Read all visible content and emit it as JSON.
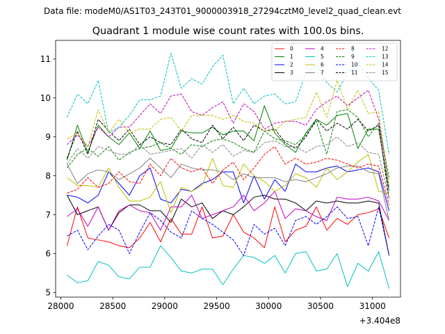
{
  "suptitle": "Data file: modeM0/AS1T03_243T01_9000003918_27294cztM0_level2_quad_clean.evt",
  "chart_data": {
    "type": "line",
    "title": "Quadrant 1 module wise count rates with 100.0s bins.",
    "xlabel": "",
    "ylabel": "",
    "x_offset_label": "+3.404e8",
    "xlim": [
      27950,
      31270
    ],
    "ylim": [
      4.88,
      11.48
    ],
    "xticks": [
      28000,
      28500,
      29000,
      29500,
      30000,
      30500,
      31000
    ],
    "yticks": [
      5,
      6,
      7,
      8,
      9,
      10,
      11
    ],
    "x": [
      28060,
      28160,
      28260,
      28360,
      28460,
      28560,
      28660,
      28760,
      28860,
      28960,
      29060,
      29160,
      29260,
      29360,
      29460,
      29560,
      29660,
      29760,
      29860,
      29960,
      30060,
      30160,
      30260,
      30360,
      30460,
      30560,
      30660,
      30760,
      30860,
      30960,
      31060,
      31160
    ],
    "legend_position": "upper right",
    "series": [
      {
        "name": "0",
        "color": "#ff0000",
        "dash": "solid",
        "values": [
          6.2,
          7.2,
          6.4,
          6.35,
          6.3,
          6.2,
          6.15,
          6.4,
          6.8,
          6.3,
          6.9,
          6.5,
          6.5,
          7.2,
          6.4,
          6.45,
          7.0,
          6.55,
          6.4,
          6.15,
          7.2,
          6.3,
          6.6,
          6.7,
          7.2,
          6.6,
          6.9,
          6.75,
          7.0,
          7.05,
          7.15,
          6.4
        ]
      },
      {
        "name": "1",
        "color": "#008000",
        "dash": "solid",
        "values": [
          8.4,
          9.3,
          8.6,
          9.3,
          9.0,
          8.8,
          9.1,
          8.7,
          9.15,
          8.65,
          8.7,
          9.15,
          9.1,
          9.1,
          9.25,
          9.05,
          9.15,
          9.15,
          8.9,
          9.8,
          9.1,
          8.8,
          8.6,
          9.1,
          9.45,
          9.3,
          9.55,
          9.6,
          8.7,
          9.2,
          9.2,
          7.6
        ]
      },
      {
        "name": "2",
        "color": "#0000ff",
        "dash": "solid",
        "values": [
          7.5,
          7.45,
          7.3,
          7.5,
          8.1,
          7.8,
          7.5,
          8.0,
          8.2,
          7.4,
          7.3,
          7.65,
          7.6,
          7.8,
          7.9,
          8.1,
          8.1,
          7.3,
          8.0,
          7.4,
          7.9,
          7.6,
          8.3,
          8.1,
          8.1,
          8.2,
          8.25,
          8.1,
          8.15,
          8.2,
          8.1,
          7.1
        ]
      },
      {
        "name": "3",
        "color": "#000000",
        "dash": "solid",
        "values": [
          7.5,
          7.0,
          7.1,
          7.2,
          6.6,
          7.05,
          7.25,
          7.25,
          7.1,
          7.1,
          6.8,
          7.4,
          7.2,
          7.3,
          6.9,
          7.1,
          7.0,
          7.2,
          7.45,
          7.5,
          7.4,
          7.4,
          7.3,
          7.1,
          7.35,
          7.3,
          7.35,
          7.3,
          7.3,
          7.35,
          7.3,
          5.95
        ]
      },
      {
        "name": "4",
        "color": "#bf00bf",
        "dash": "solid",
        "values": [
          6.95,
          7.15,
          6.7,
          7.2,
          6.6,
          7.1,
          7.25,
          7.1,
          7.05,
          6.6,
          7.2,
          7.2,
          7.5,
          6.9,
          7.0,
          7.1,
          7.2,
          7.5,
          7.1,
          7.3,
          7.6,
          6.9,
          7.15,
          7.1,
          6.95,
          6.85,
          7.45,
          7.4,
          7.4,
          7.45,
          7.35,
          6.85
        ]
      },
      {
        "name": "5",
        "color": "#00bfbf",
        "dash": "solid",
        "values": [
          5.45,
          5.25,
          5.3,
          5.8,
          5.7,
          5.4,
          5.35,
          5.65,
          5.65,
          6.2,
          5.9,
          5.55,
          5.5,
          5.6,
          5.6,
          5.2,
          5.6,
          5.95,
          5.9,
          5.75,
          5.95,
          5.5,
          6.0,
          6.05,
          5.55,
          5.6,
          6.0,
          5.15,
          5.75,
          5.55,
          6.05,
          5.1
        ]
      },
      {
        "name": "6",
        "color": "#bfbf00",
        "dash": "solid",
        "values": [
          7.95,
          7.75,
          7.75,
          7.7,
          8.2,
          7.7,
          7.35,
          7.35,
          7.45,
          7.85,
          7.05,
          7.7,
          7.6,
          7.75,
          8.45,
          7.75,
          7.7,
          8.3,
          8.0,
          7.85,
          7.6,
          7.75,
          8.05,
          7.95,
          7.7,
          8.2,
          7.9,
          8.1,
          8.35,
          8.55,
          7.6,
          7.55
        ]
      },
      {
        "name": "7",
        "color": "#808080",
        "dash": "solid",
        "values": [
          8.3,
          7.8,
          8.05,
          8.15,
          8.1,
          7.9,
          8.05,
          8.2,
          8.45,
          8.2,
          7.95,
          8.3,
          8.2,
          8.15,
          8.15,
          8.1,
          7.9,
          8.05,
          7.95,
          7.95,
          7.95,
          7.85,
          7.9,
          7.85,
          7.95,
          8.05,
          8.2,
          8.25,
          8.25,
          8.1,
          8.05,
          6.85
        ]
      },
      {
        "name": "8",
        "color": "#ff0000",
        "dash": "dashed",
        "values": [
          7.55,
          7.65,
          7.95,
          7.7,
          7.8,
          8.1,
          7.85,
          7.8,
          8.3,
          8.0,
          8.45,
          8.2,
          8.1,
          8.2,
          7.8,
          8.15,
          8.35,
          7.9,
          8.2,
          8.55,
          8.75,
          8.3,
          8.45,
          8.3,
          8.35,
          8.45,
          8.4,
          8.3,
          8.2,
          8.3,
          8.25,
          7.25
        ]
      },
      {
        "name": "9",
        "color": "#008000",
        "dash": "dashed",
        "values": [
          8.2,
          8.55,
          8.7,
          8.5,
          8.75,
          8.4,
          8.6,
          8.7,
          8.75,
          8.85,
          8.7,
          8.55,
          8.8,
          8.75,
          8.9,
          8.95,
          8.85,
          8.7,
          8.6,
          9.15,
          8.95,
          8.9,
          8.8,
          9.05,
          9.4,
          8.55,
          9.65,
          9.7,
          9.5,
          9.0,
          9.35,
          7.95
        ]
      },
      {
        "name": "10",
        "color": "#0000ff",
        "dash": "dashed",
        "values": [
          6.45,
          6.6,
          6.1,
          6.45,
          6.75,
          6.6,
          6.0,
          6.55,
          7.05,
          6.85,
          6.55,
          6.4,
          7.1,
          6.9,
          6.75,
          6.55,
          6.35,
          5.95,
          6.75,
          6.5,
          6.65,
          6.2,
          6.85,
          6.95,
          6.75,
          6.95,
          7.2,
          6.9,
          6.95,
          6.2,
          7.2,
          5.95
        ]
      },
      {
        "name": "11",
        "color": "#000000",
        "dash": "dashed",
        "values": [
          8.45,
          9.15,
          8.55,
          9.45,
          9.15,
          8.9,
          9.2,
          8.8,
          9.0,
          8.85,
          8.8,
          9.2,
          8.95,
          8.85,
          9.3,
          8.95,
          9.25,
          8.9,
          9.3,
          9.15,
          9.2,
          8.85,
          8.7,
          9.0,
          9.45,
          9.15,
          9.35,
          9.2,
          9.45,
          9.15,
          9.3,
          7.4
        ]
      },
      {
        "name": "12",
        "color": "#bf00bf",
        "dash": "dashed",
        "values": [
          8.8,
          9.05,
          8.75,
          9.25,
          9.0,
          9.25,
          9.25,
          9.55,
          9.85,
          9.6,
          10.05,
          10.1,
          9.65,
          9.55,
          9.75,
          9.9,
          9.35,
          9.85,
          9.65,
          9.2,
          9.35,
          9.4,
          9.4,
          9.3,
          9.7,
          9.9,
          10.05,
          9.8,
          10.0,
          10.2,
          9.45,
          7.7
        ]
      },
      {
        "name": "13",
        "color": "#00bfbf",
        "dash": "dashed",
        "values": [
          9.5,
          10.1,
          9.85,
          10.45,
          9.1,
          9.25,
          9.55,
          9.95,
          9.95,
          10.05,
          11.15,
          10.25,
          10.5,
          10.35,
          10.8,
          11.1,
          9.85,
          10.25,
          9.85,
          10.05,
          10.1,
          9.85,
          9.9,
          10.65,
          10.85,
          10.4,
          10.15,
          10.65,
          10.9,
          10.5,
          10.2,
          8.55
        ]
      },
      {
        "name": "14",
        "color": "#bfbf00",
        "dash": "dashed",
        "values": [
          8.95,
          9.1,
          8.75,
          9.7,
          9.1,
          9.45,
          9.1,
          9.2,
          9.2,
          9.45,
          9.5,
          9.15,
          9.55,
          9.55,
          9.55,
          9.45,
          9.55,
          9.4,
          9.35,
          9.15,
          9.15,
          9.4,
          9.45,
          9.5,
          10.15,
          9.5,
          10.45,
          9.7,
          10.2,
          9.6,
          9.65,
          7.75
        ]
      },
      {
        "name": "15",
        "color": "#808080",
        "dash": "dashed",
        "values": [
          8.3,
          8.7,
          8.45,
          8.75,
          8.65,
          8.55,
          8.55,
          8.8,
          8.55,
          8.6,
          8.65,
          8.7,
          8.45,
          8.8,
          8.6,
          8.8,
          8.5,
          8.65,
          8.6,
          8.85,
          8.9,
          8.75,
          8.75,
          8.6,
          8.75,
          8.8,
          9.0,
          8.75,
          8.85,
          8.6,
          8.55,
          7.4
        ]
      }
    ]
  }
}
